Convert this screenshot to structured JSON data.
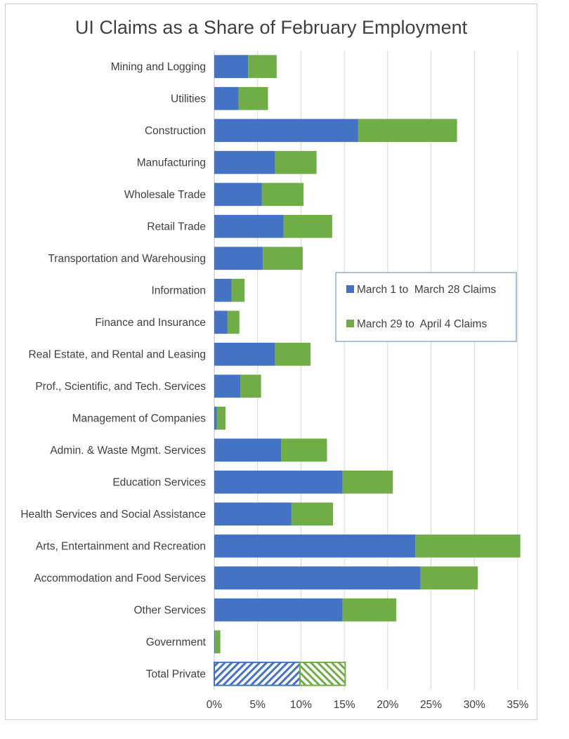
{
  "chart_data": {
    "type": "bar",
    "orientation": "horizontal",
    "stacked": true,
    "title": "UI Claims as a Share of February Employment",
    "xlabel": "",
    "ylabel": "",
    "xlim": [
      0,
      35
    ],
    "x_ticks": [
      "0%",
      "5%",
      "10%",
      "15%",
      "20%",
      "25%",
      "30%",
      "35%"
    ],
    "grid": "vertical",
    "legend_position": "right-middle",
    "categories": [
      "Mining and Logging",
      "Utilities",
      "Construction",
      "Manufacturing",
      "Wholesale Trade",
      "Retail Trade",
      "Transportation and Warehousing",
      "Information",
      "Finance and Insurance",
      "Real Estate, and Rental and Leasing",
      "Prof., Scientific, and Tech. Services",
      "Management of Companies",
      "Admin. & Waste Mgmt. Services",
      "Education Services",
      "Health Services and Social Assistance",
      "Arts, Entertainment and Recreation",
      "Accommodation and Food Services",
      "Other Services",
      "Government",
      "Total Private"
    ],
    "series": [
      {
        "name": "March 1 to  March 28 Claims",
        "color": "#4472C4",
        "values": [
          3.9,
          2.8,
          16.6,
          7.0,
          5.5,
          8.0,
          5.6,
          2.0,
          1.5,
          7.0,
          3.0,
          0.3,
          7.7,
          14.8,
          8.9,
          23.2,
          23.8,
          14.8,
          0.1,
          9.9
        ]
      },
      {
        "name": "March 29 to  April 4 Claims",
        "color": "#70AD47",
        "values": [
          3.3,
          3.4,
          11.4,
          4.8,
          4.8,
          5.6,
          4.6,
          1.5,
          1.4,
          4.1,
          2.4,
          1.0,
          5.3,
          5.8,
          4.8,
          12.1,
          6.6,
          6.2,
          0.6,
          5.2
        ]
      }
    ],
    "hatched_categories": [
      "Total Private"
    ]
  }
}
